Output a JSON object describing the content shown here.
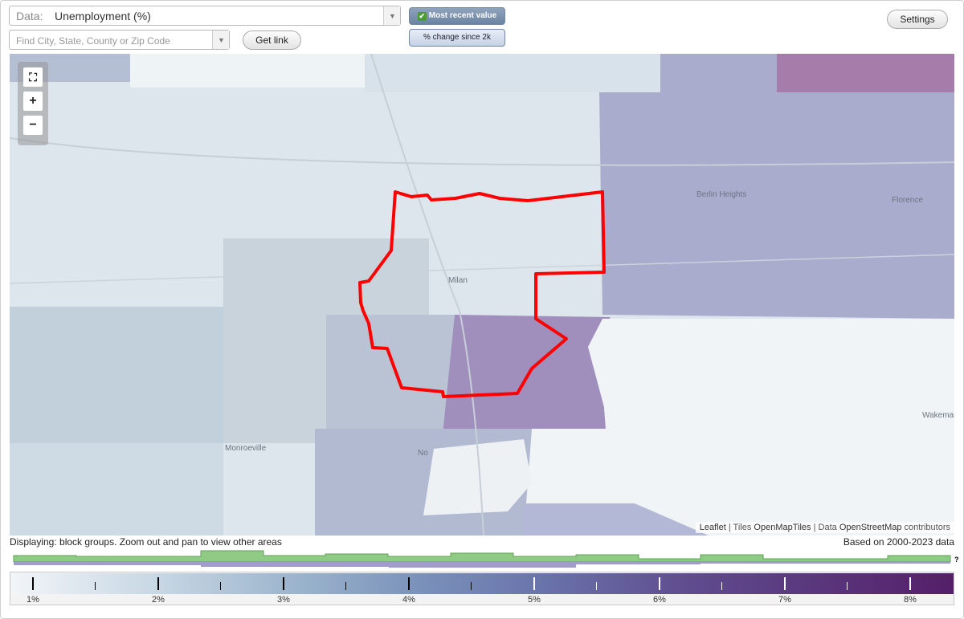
{
  "data_select": {
    "label": "Data:",
    "value": "Unemployment (%)"
  },
  "search": {
    "placeholder": "Find City, State, County or Zip Code"
  },
  "buttons": {
    "get_link": "Get link",
    "settings": "Settings"
  },
  "toggles": {
    "most_recent": "Most recent value",
    "percent_change": "% change since 2k"
  },
  "map": {
    "places": {
      "milan": "Milan",
      "berlin_heights": "Berlin Heights",
      "florence": "Florence",
      "monroeville": "Monroeville",
      "wakeman": "Wakeman",
      "norwalk_abbrev": "No"
    },
    "attribution": {
      "leaflet": "Leaflet",
      "sep1": " | Tiles ",
      "tiles": "OpenMapTiles",
      "sep2": " | Data ",
      "data": "OpenStreetMap",
      "suffix": " contributors"
    }
  },
  "status": {
    "displaying": "Displaying: block groups. Zoom out and pan to view other areas",
    "based_on": "Based on 2000-2023 data"
  },
  "legend": {
    "labels": [
      "1%",
      "2%",
      "3%",
      "4%",
      "5%",
      "6%",
      "7%",
      "8%"
    ],
    "histogram_help": "?"
  },
  "colors": {
    "highlight_outline": "#ff0000",
    "scale_low": "#f2f5f8",
    "scale_high": "#541f69",
    "hist_green": "#8fcb84",
    "hist_purple": "#a49bcc"
  }
}
